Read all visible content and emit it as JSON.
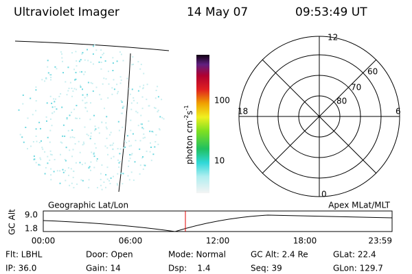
{
  "header": {
    "instrument": "Ultraviolet Imager",
    "date": "14 May 07",
    "time": "09:53:49 UT"
  },
  "colorbar": {
    "label": "photon cm",
    "exp1": "-2",
    "unit2": "s",
    "exp2": "-1",
    "ticks": [
      "100",
      "10"
    ]
  },
  "polar": {
    "mlt_labels": [
      "12",
      "6",
      "0",
      "18"
    ],
    "lat_labels": [
      "60",
      "70",
      "80"
    ]
  },
  "orbit": {
    "left_title": "Geographic Lat/Lon",
    "right_title": "Apex MLat/MLT",
    "y_label": "GC Alt",
    "y_ticks": [
      "9.0",
      "1.8"
    ],
    "x_ticks": [
      "00:00",
      "06:00",
      "12:00",
      "18:00",
      "23:59"
    ]
  },
  "info": [
    [
      "Flt: LBHL",
      "Door: Open",
      "Mode: Normal",
      "GC Alt: 2.4 Re",
      "GLat: 22.4"
    ],
    [
      "IP: 36.0",
      "Gain: 14",
      "Dsp:    1.4",
      "Seq: 39",
      "GLon: 129.7"
    ]
  ]
}
